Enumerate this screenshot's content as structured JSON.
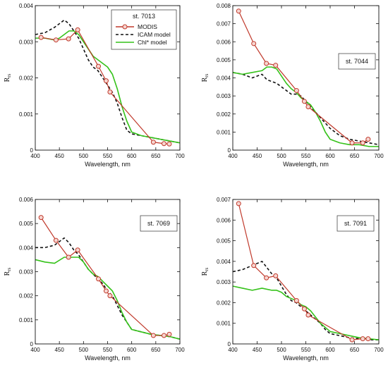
{
  "legend": {
    "title": "st. 7013",
    "entries": [
      {
        "label": "MODIS",
        "color": "#c0392b"
      },
      {
        "label": "ICAM model",
        "color": "#111111"
      },
      {
        "label": "Chl* model",
        "color": "#35c21a"
      }
    ]
  },
  "chart_data": [
    {
      "type": "line",
      "station": "st. 7013",
      "xlabel": "Wavelength, nm",
      "ylabel": "R",
      "ylabel_sub": "rs",
      "xlim": [
        400,
        700
      ],
      "ylim": [
        0,
        0.004
      ],
      "xticks": [
        400,
        450,
        500,
        550,
        600,
        650,
        700
      ],
      "yticks": [
        0,
        0.001,
        0.002,
        0.003,
        0.004
      ],
      "xtick_labels": [
        "400",
        "450",
        "500",
        "550",
        "600",
        "650",
        "700"
      ],
      "ytick_labels": [
        "0",
        "0.001",
        "0.002",
        "0.003",
        "0.004"
      ],
      "legend_position": "top-right",
      "series": [
        {
          "name": "MODIS",
          "style": "line-circle",
          "color": "#c0392b",
          "x": [
            412,
            443,
            469,
            488,
            531,
            547,
            555,
            645,
            667,
            678
          ],
          "y": [
            0.00312,
            0.00305,
            0.00308,
            0.00333,
            0.00232,
            0.00192,
            0.00161,
            0.00022,
            0.00018,
            0.00017
          ]
        },
        {
          "name": "ICAM model",
          "style": "dashed",
          "color": "#111111",
          "x": [
            400,
            420,
            440,
            460,
            470,
            480,
            490,
            500,
            510,
            520,
            530,
            540,
            550,
            560,
            570,
            580,
            590,
            600,
            620,
            640,
            660,
            680,
            700
          ],
          "y": [
            0.0032,
            0.00325,
            0.0034,
            0.0036,
            0.0035,
            0.0033,
            0.0031,
            0.0028,
            0.0025,
            0.0023,
            0.0022,
            0.002,
            0.0018,
            0.0016,
            0.0013,
            0.0009,
            0.00055,
            0.00045,
            0.0004,
            0.00035,
            0.0003,
            0.00025,
            0.0002
          ]
        },
        {
          "name": "Chl* model",
          "style": "solid",
          "color": "#35c21a",
          "x": [
            400,
            420,
            440,
            450,
            460,
            470,
            480,
            490,
            500,
            510,
            520,
            530,
            540,
            550,
            560,
            570,
            580,
            590,
            600,
            620,
            640,
            660,
            680,
            700
          ],
          "y": [
            0.0031,
            0.0031,
            0.00305,
            0.0031,
            0.0032,
            0.0033,
            0.0033,
            0.0032,
            0.003,
            0.0028,
            0.0026,
            0.0025,
            0.0024,
            0.0023,
            0.0021,
            0.0017,
            0.0012,
            0.0008,
            0.0005,
            0.0004,
            0.00035,
            0.0003,
            0.00025,
            0.0002
          ]
        }
      ]
    },
    {
      "type": "line",
      "station": "st. 7044",
      "xlabel": "Wavelength, nm",
      "ylabel": "R",
      "ylabel_sub": "rs",
      "xlim": [
        400,
        700
      ],
      "ylim": [
        0,
        0.008
      ],
      "xticks": [
        400,
        450,
        500,
        550,
        600,
        650,
        700
      ],
      "yticks": [
        0,
        0.001,
        0.002,
        0.003,
        0.004,
        0.005,
        0.006,
        0.007,
        0.008
      ],
      "xtick_labels": [
        "400",
        "450",
        "500",
        "550",
        "600",
        "650",
        "700"
      ],
      "ytick_labels": [
        "0",
        "0.001",
        "0.002",
        "0.003",
        "0.004",
        "0.005",
        "0.006",
        "0.007",
        "0.008"
      ],
      "series": [
        {
          "name": "MODIS",
          "style": "line-circle",
          "color": "#c0392b",
          "x": [
            412,
            443,
            469,
            488,
            531,
            547,
            555,
            645,
            667,
            678
          ],
          "y": [
            0.0077,
            0.0059,
            0.0048,
            0.0047,
            0.0033,
            0.0027,
            0.0024,
            0.0004,
            0.0004,
            0.0006
          ]
        },
        {
          "name": "ICAM model",
          "style": "dashed",
          "color": "#111111",
          "x": [
            400,
            420,
            440,
            460,
            470,
            480,
            490,
            500,
            510,
            520,
            530,
            540,
            550,
            560,
            570,
            580,
            590,
            600,
            620,
            640,
            660,
            680,
            700
          ],
          "y": [
            0.0043,
            0.0042,
            0.004,
            0.0042,
            0.0039,
            0.0038,
            0.0037,
            0.0035,
            0.0033,
            0.0031,
            0.0031,
            0.003,
            0.0027,
            0.0024,
            0.0021,
            0.0018,
            0.0015,
            0.0012,
            0.0008,
            0.0006,
            0.0005,
            0.0004,
            0.0003
          ]
        },
        {
          "name": "Chl* model",
          "style": "solid",
          "color": "#35c21a",
          "x": [
            400,
            420,
            440,
            460,
            470,
            480,
            490,
            500,
            510,
            520,
            530,
            540,
            550,
            560,
            570,
            580,
            590,
            600,
            620,
            640,
            660,
            680,
            700
          ],
          "y": [
            0.0043,
            0.0042,
            0.0043,
            0.0044,
            0.0046,
            0.0046,
            0.0045,
            0.0041,
            0.0037,
            0.0034,
            0.0032,
            0.0029,
            0.0027,
            0.0025,
            0.0021,
            0.0016,
            0.001,
            0.0006,
            0.0004,
            0.0003,
            0.0003,
            0.0002,
            0.0002
          ]
        }
      ]
    },
    {
      "type": "line",
      "station": "st. 7069",
      "xlabel": "Wavelength, nm",
      "ylabel": "R",
      "ylabel_sub": "rs",
      "xlim": [
        400,
        700
      ],
      "ylim": [
        0,
        0.006
      ],
      "xticks": [
        400,
        450,
        500,
        550,
        600,
        650,
        700
      ],
      "yticks": [
        0,
        0.001,
        0.002,
        0.003,
        0.004,
        0.005,
        0.006
      ],
      "xtick_labels": [
        "400",
        "450",
        "500",
        "550",
        "600",
        "650",
        "700"
      ],
      "ytick_labels": [
        "0",
        "0.001",
        "0.002",
        "0.003",
        "0.004",
        "0.005",
        "0.006"
      ],
      "series": [
        {
          "name": "MODIS",
          "style": "line-circle",
          "color": "#c0392b",
          "x": [
            412,
            443,
            469,
            488,
            531,
            547,
            555,
            645,
            667,
            678
          ],
          "y": [
            0.00525,
            0.0043,
            0.0036,
            0.0039,
            0.0027,
            0.0022,
            0.002,
            0.00035,
            0.00035,
            0.0004
          ]
        },
        {
          "name": "ICAM model",
          "style": "dashed",
          "color": "#111111",
          "x": [
            400,
            420,
            440,
            460,
            470,
            480,
            490,
            500,
            510,
            520,
            530,
            540,
            550,
            560,
            570,
            580,
            590,
            600,
            620,
            640,
            660,
            680,
            700
          ],
          "y": [
            0.004,
            0.004,
            0.0041,
            0.0044,
            0.0042,
            0.0039,
            0.0037,
            0.0034,
            0.0031,
            0.0029,
            0.0027,
            0.0025,
            0.0022,
            0.002,
            0.0016,
            0.0012,
            0.0009,
            0.0006,
            0.0005,
            0.0004,
            0.00035,
            0.0003,
            0.0002
          ]
        },
        {
          "name": "Chl* model",
          "style": "solid",
          "color": "#35c21a",
          "x": [
            400,
            420,
            440,
            460,
            470,
            480,
            490,
            500,
            510,
            520,
            530,
            540,
            550,
            560,
            570,
            580,
            590,
            600,
            620,
            640,
            660,
            680,
            700
          ],
          "y": [
            0.0035,
            0.0034,
            0.00335,
            0.0036,
            0.0036,
            0.0036,
            0.0036,
            0.0034,
            0.0031,
            0.0029,
            0.0028,
            0.0026,
            0.0024,
            0.0022,
            0.0018,
            0.0013,
            0.0009,
            0.0006,
            0.0005,
            0.0004,
            0.00035,
            0.0003,
            0.0002
          ]
        }
      ]
    },
    {
      "type": "line",
      "station": "st. 7091",
      "xlabel": "Wavelength, nm",
      "ylabel": "R",
      "ylabel_sub": "rs",
      "xlim": [
        400,
        700
      ],
      "ylim": [
        0,
        0.007
      ],
      "xticks": [
        400,
        450,
        500,
        550,
        600,
        650,
        700
      ],
      "yticks": [
        0,
        0.001,
        0.002,
        0.003,
        0.004,
        0.005,
        0.006,
        0.007
      ],
      "xtick_labels": [
        "400",
        "450",
        "500",
        "550",
        "600",
        "650",
        "700"
      ],
      "ytick_labels": [
        "0",
        "0.001",
        "0.002",
        "0.003",
        "0.004",
        "0.005",
        "0.006",
        "0.007"
      ],
      "series": [
        {
          "name": "MODIS",
          "style": "line-circle",
          "color": "#c0392b",
          "x": [
            412,
            443,
            469,
            488,
            531,
            547,
            555,
            645,
            667,
            678
          ],
          "y": [
            0.0068,
            0.0038,
            0.0032,
            0.0033,
            0.0021,
            0.0017,
            0.0014,
            0.0002,
            0.00025,
            0.00025
          ]
        },
        {
          "name": "ICAM model",
          "style": "dashed",
          "color": "#111111",
          "x": [
            400,
            420,
            440,
            460,
            470,
            480,
            490,
            500,
            510,
            520,
            530,
            540,
            550,
            560,
            570,
            580,
            590,
            600,
            620,
            640,
            660,
            680,
            700
          ],
          "y": [
            0.0035,
            0.0036,
            0.0038,
            0.004,
            0.0037,
            0.0034,
            0.0032,
            0.0028,
            0.0024,
            0.0021,
            0.002,
            0.0018,
            0.0016,
            0.0014,
            0.0012,
            0.001,
            0.0007,
            0.0005,
            0.0004,
            0.0003,
            0.00025,
            0.0002,
            0.0002
          ]
        },
        {
          "name": "Chl* model",
          "style": "solid",
          "color": "#35c21a",
          "x": [
            400,
            420,
            440,
            460,
            480,
            490,
            500,
            510,
            520,
            530,
            540,
            550,
            560,
            570,
            580,
            590,
            600,
            620,
            640,
            660,
            680,
            700
          ],
          "y": [
            0.0028,
            0.0027,
            0.0026,
            0.0027,
            0.0026,
            0.0026,
            0.0025,
            0.0023,
            0.0022,
            0.0021,
            0.0019,
            0.0018,
            0.0016,
            0.0013,
            0.001,
            0.0008,
            0.0006,
            0.0005,
            0.0004,
            0.0003,
            0.00025,
            0.0002
          ]
        }
      ]
    }
  ]
}
